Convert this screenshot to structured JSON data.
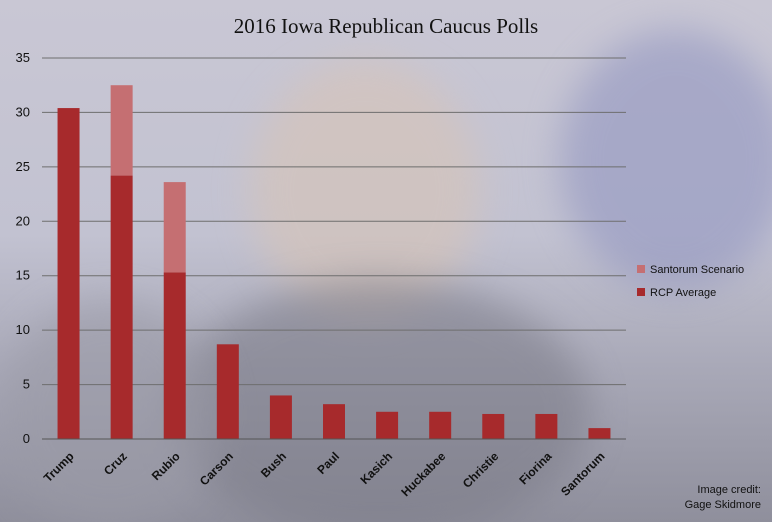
{
  "chart_data": {
    "type": "bar",
    "title": "2016 Iowa Republican Caucus Polls",
    "categories": [
      "Trump",
      "Cruz",
      "Rubio",
      "Carson",
      "Bush",
      "Paul",
      "Kasich",
      "Huckabee",
      "Christie",
      "Fiorina",
      "Santorum"
    ],
    "stacked": true,
    "series": [
      {
        "name": "RCP Average",
        "color": "#a72a2c",
        "values": [
          30.4,
          24.2,
          15.3,
          8.7,
          4.0,
          3.2,
          2.5,
          2.5,
          2.3,
          2.3,
          1.0
        ]
      },
      {
        "name": "Santorum Scenario",
        "color": "#c56f72",
        "values": [
          0,
          8.3,
          8.3,
          0,
          0,
          0,
          0,
          0,
          0,
          0,
          0
        ]
      }
    ],
    "ylim": [
      0,
      35
    ],
    "yticks": [
      0,
      5,
      10,
      15,
      20,
      25,
      30,
      35
    ],
    "grid": true,
    "legend_position": "right"
  },
  "credit": {
    "line1": "Image credit:",
    "line2": "Gage Skidmore"
  }
}
